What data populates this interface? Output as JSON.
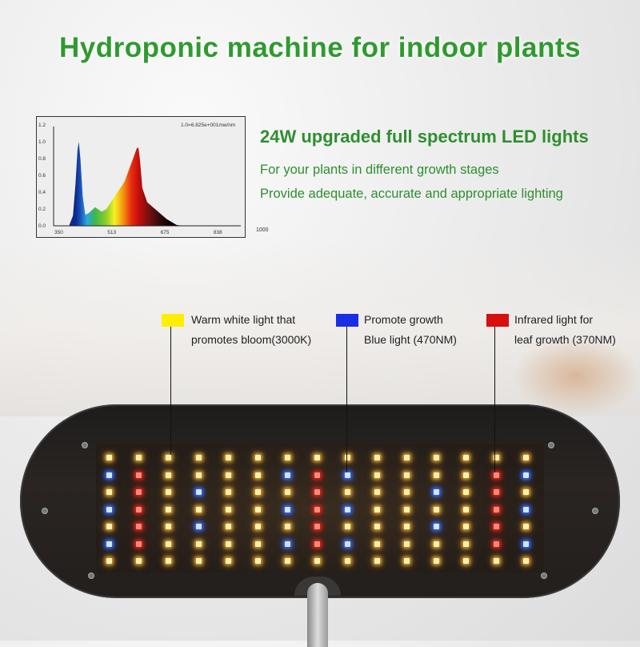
{
  "title": "Hydroponic machine for indoor plants",
  "feature": {
    "heading": "24W upgraded full spectrum LED lights",
    "lines": [
      "For your plants in different growth stages",
      "Provide adequate, accurate and appropriate lighting"
    ]
  },
  "chart_data": {
    "type": "area",
    "annotation": "1.0=6.825e+001mw/nm",
    "x_ticks": [
      "350",
      "513",
      "675",
      "838",
      "1000"
    ],
    "y_ticks": [
      "0.0",
      "0.2",
      "0.4",
      "0.6",
      "0.8",
      "1.0",
      "1.2"
    ],
    "xlim": [
      350,
      1000
    ],
    "ylim": [
      0,
      1.2
    ],
    "grid": false,
    "x": [
      390,
      402,
      410,
      416,
      420,
      425,
      432,
      440,
      450,
      470,
      490,
      505,
      530,
      560,
      585,
      598,
      603,
      608,
      615,
      630,
      660,
      690,
      720,
      740
    ],
    "values": [
      0,
      0.12,
      0.5,
      0.9,
      1.0,
      0.8,
      0.35,
      0.13,
      0.15,
      0.22,
      0.17,
      0.2,
      0.35,
      0.52,
      0.78,
      0.92,
      0.93,
      0.78,
      0.45,
      0.28,
      0.18,
      0.08,
      0.01,
      0
    ]
  },
  "legend": [
    {
      "color": "#ffee00",
      "lines": [
        "Warm white light that",
        "promotes bloom(3000K)"
      ]
    },
    {
      "color": "#1a2ee6",
      "lines": [
        "Promote growth",
        "Blue light (470NM)"
      ]
    },
    {
      "color": "#d80f0f",
      "lines": [
        "Infrared light for",
        "leaf growth (370NM)"
      ]
    }
  ],
  "led_colors": {
    "Y": "#fff2b0",
    "B": "#cfe6ff",
    "R": "#ff8a7a"
  },
  "led_columns": [
    "YBYBYBY",
    "YRRRRRY",
    "YYYYYYY",
    "YYBYBYY",
    "YYYYYYY",
    "YYYYYYY",
    "YBYBYBY",
    "YRRRRRY",
    "YBYBYBY",
    "YYYYYYY",
    "YYYYYYY",
    "YYBYBYY",
    "YYYYYYY",
    "YRRRRRY",
    "YBYBYBY"
  ]
}
